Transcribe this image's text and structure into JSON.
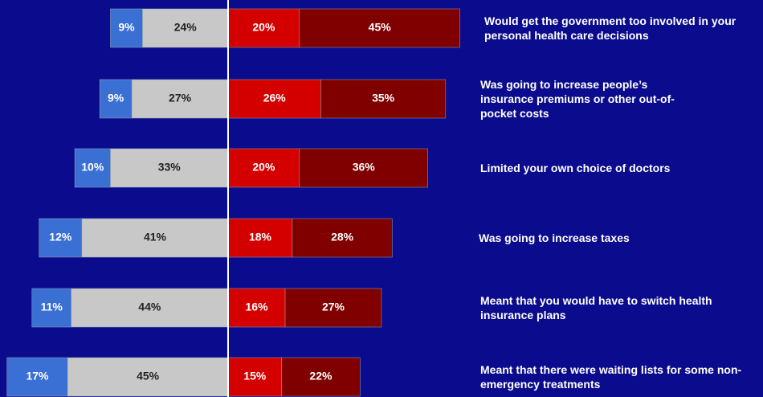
{
  "chart_data": {
    "type": "diverging-bar",
    "categories": [
      "Would get the government too involved in your personal health care decisions",
      "Was going to increase people’s insurance premiums or other out-of-pocket costs",
      "Limited your own choice of doctors",
      "Was going to increase taxes",
      "Meant that you would have to switch health insurance plans",
      "Meant that there were waiting lists for some non-emergency treatments"
    ],
    "series": [
      {
        "color": "#3a6fd4",
        "values": [
          9,
          9,
          10,
          12,
          11,
          17
        ],
        "value_labels": [
          "9%",
          "9%",
          "10%",
          "12%",
          "11%",
          "17%"
        ]
      },
      {
        "color": "#c8c8c8",
        "values": [
          24,
          27,
          33,
          41,
          44,
          45
        ],
        "value_labels": [
          "24%",
          "27%",
          "33%",
          "41%",
          "44%",
          "45%"
        ]
      },
      {
        "color": "#d40000",
        "values": [
          20,
          26,
          20,
          18,
          16,
          15
        ],
        "value_labels": [
          "20%",
          "26%",
          "20%",
          "18%",
          "16%",
          "15%"
        ]
      },
      {
        "color": "#800000",
        "values": [
          45,
          35,
          36,
          28,
          27,
          22
        ],
        "value_labels": [
          "45%",
          "35%",
          "36%",
          "28%",
          "27%",
          "22%"
        ]
      }
    ]
  }
}
